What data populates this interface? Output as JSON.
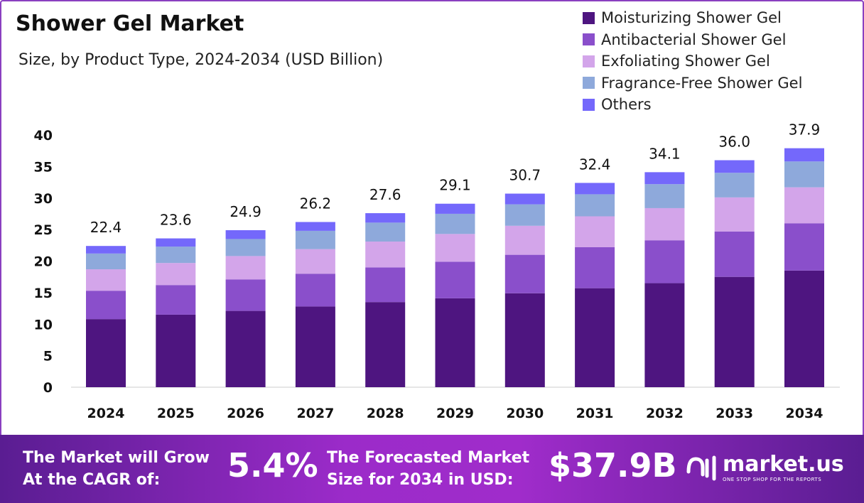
{
  "chart_data": {
    "type": "bar",
    "stacked": true,
    "title": "Shower Gel Market",
    "subtitle": "Size, by Product Type, 2024-2034 (USD Billion)",
    "categories": [
      "2024",
      "2025",
      "2026",
      "2027",
      "2028",
      "2029",
      "2030",
      "2031",
      "2032",
      "2033",
      "2034"
    ],
    "totals": [
      "22.4",
      "23.6",
      "24.9",
      "26.2",
      "27.6",
      "29.1",
      "30.7",
      "32.4",
      "34.1",
      "36.0",
      "37.9"
    ],
    "series": [
      {
        "name": "Moisturizing Shower Gel",
        "color": "#4e1580",
        "values": [
          10.8,
          11.5,
          12.1,
          12.8,
          13.5,
          14.1,
          14.9,
          15.7,
          16.5,
          17.5,
          18.5
        ]
      },
      {
        "name": "Antibacterial Shower Gel",
        "color": "#8a4fcb",
        "values": [
          4.5,
          4.7,
          5.0,
          5.2,
          5.5,
          5.8,
          6.1,
          6.5,
          6.8,
          7.2,
          7.5
        ]
      },
      {
        "name": "Exfoliating Shower Gel",
        "color": "#d3a5ea",
        "values": [
          3.4,
          3.5,
          3.7,
          3.9,
          4.1,
          4.4,
          4.6,
          4.9,
          5.1,
          5.4,
          5.7
        ]
      },
      {
        "name": "Fragrance-Free Shower Gel",
        "color": "#8ea9db",
        "values": [
          2.5,
          2.6,
          2.7,
          2.9,
          3.0,
          3.2,
          3.4,
          3.5,
          3.8,
          3.9,
          4.1
        ]
      },
      {
        "name": "Others",
        "color": "#7468fb",
        "values": [
          1.2,
          1.3,
          1.4,
          1.4,
          1.5,
          1.6,
          1.7,
          1.8,
          1.9,
          2.0,
          2.1
        ]
      }
    ],
    "yticks": [
      "0",
      "5",
      "10",
      "15",
      "20",
      "25",
      "30",
      "35",
      "40"
    ],
    "ylim": [
      0,
      40
    ],
    "grid": false,
    "legend": "top-right"
  },
  "footer": {
    "cagr_label_1": "The Market will Grow",
    "cagr_label_2": "At the CAGR of:",
    "cagr_value": "5.4%",
    "forecast_label_1": "The Forecasted Market",
    "forecast_label_2": "Size for 2034 in USD:",
    "forecast_value": "$37.9B",
    "logo_name": "market.us",
    "logo_tagline": "ONE STOP SHOP FOR THE REPORTS"
  }
}
